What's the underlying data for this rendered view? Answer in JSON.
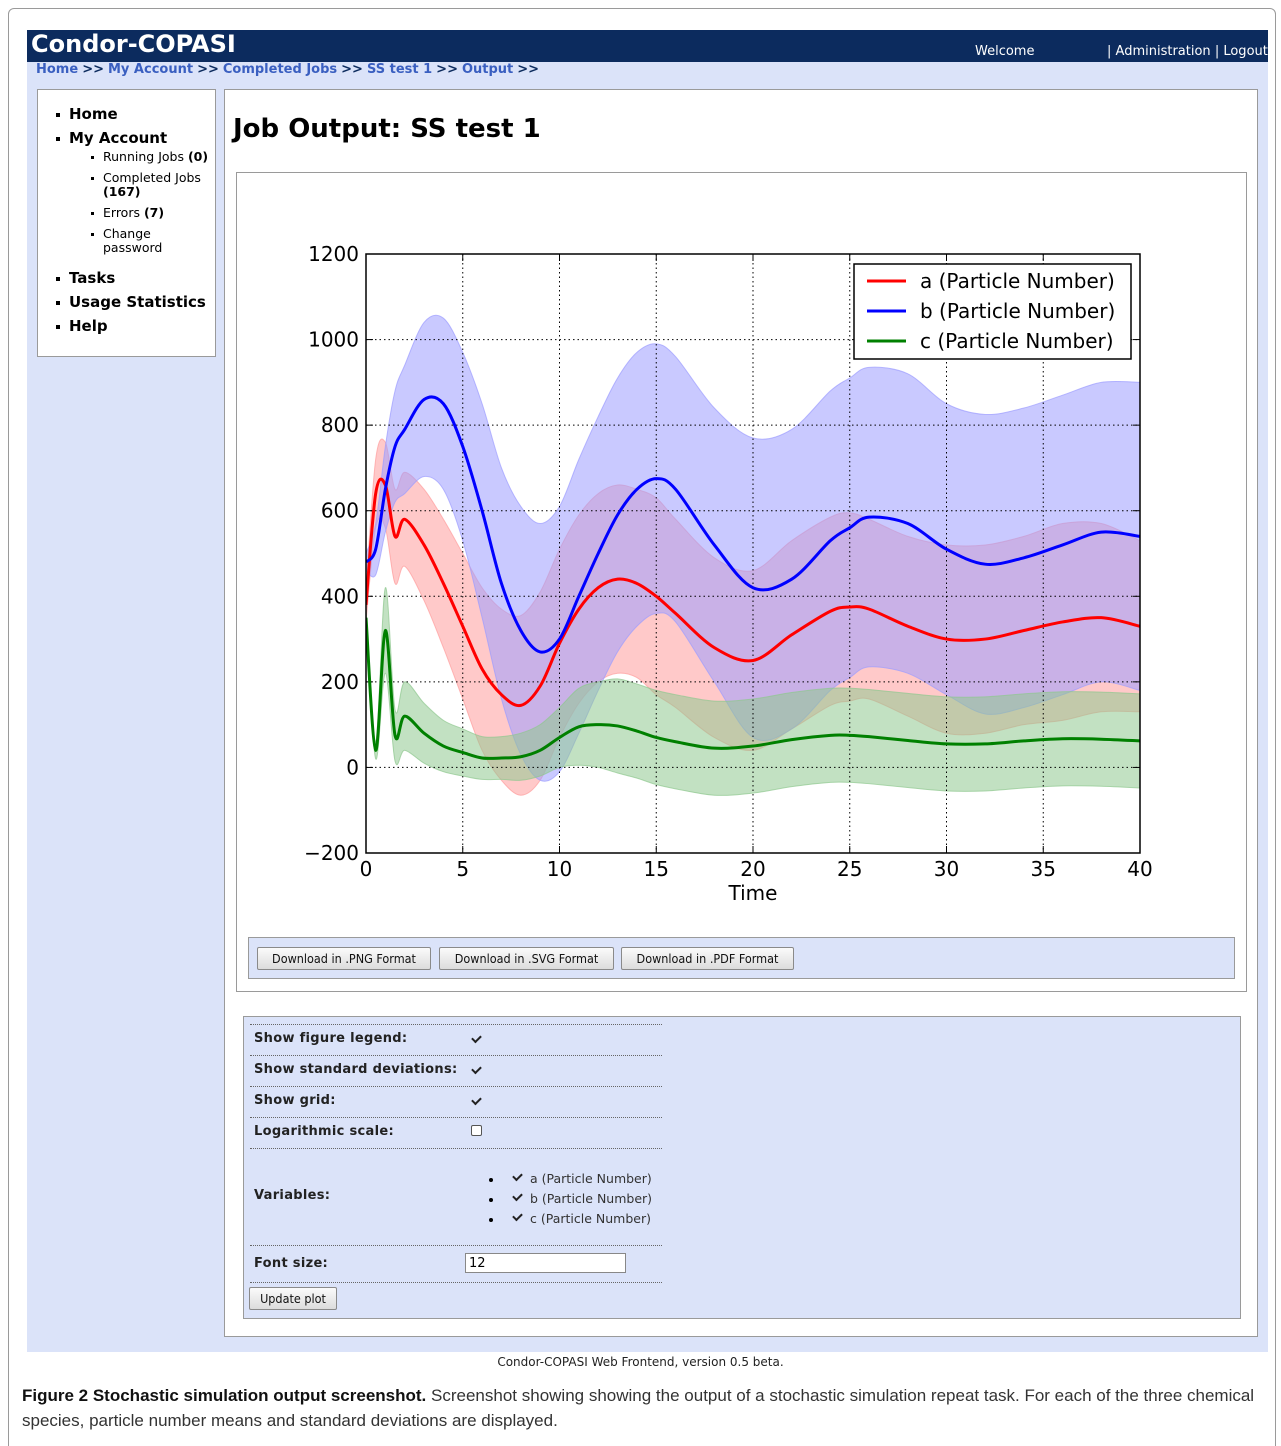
{
  "header": {
    "title": "Condor-COPASI",
    "welcome": "Welcome",
    "links": [
      "Administration",
      "Logout"
    ],
    "separator": "|"
  },
  "breadcrumb": {
    "items": [
      "Home",
      "My Account",
      "Completed Jobs",
      "SS test 1",
      "Output"
    ],
    "separator": ">>"
  },
  "sidebar": {
    "items": [
      {
        "label": "Home"
      },
      {
        "label": "My Account",
        "children": [
          {
            "label": "Running Jobs",
            "count": "(0)"
          },
          {
            "label": "Completed Jobs",
            "count": "(167)"
          },
          {
            "label": "Errors",
            "count": "(7)"
          },
          {
            "label": "Change password"
          }
        ]
      },
      {
        "label": "Tasks"
      },
      {
        "label": "Usage Statistics"
      },
      {
        "label": "Help"
      }
    ]
  },
  "page_title": "Job Output: SS test 1",
  "chart_data": {
    "type": "line",
    "xlabel": "Time",
    "x": [
      0,
      0.5,
      1,
      1.5,
      2,
      3,
      4,
      5,
      6,
      7,
      8,
      9,
      10,
      11,
      12,
      13,
      14,
      15,
      16,
      18,
      20,
      22,
      24,
      25,
      26,
      28,
      30,
      32,
      34,
      36,
      38,
      40
    ],
    "series": [
      {
        "name": "a (Particle Number)",
        "color": "#ff0000",
        "band_color": "#ff9c9c",
        "values": [
          380,
          640,
          660,
          540,
          580,
          520,
          430,
          330,
          230,
          170,
          145,
          190,
          290,
          370,
          420,
          440,
          430,
          400,
          360,
          280,
          250,
          310,
          365,
          375,
          370,
          330,
          300,
          300,
          320,
          340,
          350,
          330
        ],
        "std": [
          40,
          80,
          100,
          110,
          110,
          130,
          150,
          170,
          190,
          200,
          210,
          220,
          220,
          220,
          220,
          220,
          220,
          230,
          220,
          210,
          210,
          220,
          220,
          220,
          210,
          210,
          220,
          220,
          220,
          230,
          220,
          200
        ]
      },
      {
        "name": "b (Particle Number)",
        "color": "#0000ff",
        "band_color": "#9c9cff",
        "values": [
          480,
          510,
          650,
          750,
          790,
          860,
          850,
          750,
          600,
          430,
          320,
          270,
          300,
          400,
          500,
          590,
          650,
          675,
          650,
          520,
          420,
          440,
          530,
          560,
          585,
          570,
          510,
          475,
          490,
          520,
          550,
          540
        ],
        "std": [
          20,
          60,
          100,
          130,
          150,
          180,
          200,
          220,
          250,
          270,
          290,
          300,
          310,
          320,
          320,
          320,
          320,
          315,
          310,
          320,
          350,
          350,
          350,
          350,
          350,
          350,
          340,
          350,
          350,
          350,
          350,
          360
        ]
      },
      {
        "name": "c (Particle Number)",
        "color": "#008000",
        "band_color": "#8fc88f",
        "values": [
          350,
          40,
          320,
          75,
          120,
          80,
          50,
          35,
          22,
          22,
          25,
          40,
          70,
          95,
          100,
          97,
          85,
          70,
          60,
          45,
          50,
          65,
          75,
          75,
          72,
          63,
          55,
          55,
          62,
          67,
          66,
          62
        ],
        "std": [
          20,
          20,
          100,
          60,
          80,
          70,
          60,
          55,
          50,
          50,
          55,
          60,
          70,
          90,
          100,
          110,
          110,
          110,
          110,
          110,
          110,
          110,
          110,
          110,
          110,
          110,
          110,
          110,
          110,
          110,
          110,
          110
        ]
      }
    ],
    "xlim": [
      0,
      40
    ],
    "xticks": [
      0,
      5,
      10,
      15,
      20,
      25,
      30,
      35,
      40
    ],
    "ylim": [
      -200,
      1200
    ],
    "yticks": [
      {
        "value": -200,
        "label": "−200"
      },
      0,
      200,
      400,
      600,
      800,
      1000,
      1200
    ],
    "grid": true,
    "legend": "upper right"
  },
  "downloads": [
    "Download in .PNG Format",
    "Download in .SVG Format",
    "Download in .PDF Format"
  ],
  "options": {
    "rows": [
      {
        "label": "Show figure legend:",
        "checked": true
      },
      {
        "label": "Show standard deviations:",
        "checked": true
      },
      {
        "label": "Show grid:",
        "checked": true
      },
      {
        "label": "Logarithmic scale:",
        "checked": false
      }
    ],
    "variables": {
      "label": "Variables:",
      "items": [
        {
          "label": "a (Particle Number)",
          "checked": true
        },
        {
          "label": "b (Particle Number)",
          "checked": true
        },
        {
          "label": "c (Particle Number)",
          "checked": true
        }
      ]
    },
    "font_size": {
      "label": "Font size:",
      "value": "12"
    },
    "button": "Update plot"
  },
  "footer": "Condor-COPASI Web Frontend, version 0.5 beta.",
  "caption": {
    "label": "Figure 2 Stochastic simulation output screenshot.",
    "text": "Screenshot showing showing the output of a stochastic simulation repeat task. For each of the three chemical species, particle number means and standard deviations are displayed."
  }
}
